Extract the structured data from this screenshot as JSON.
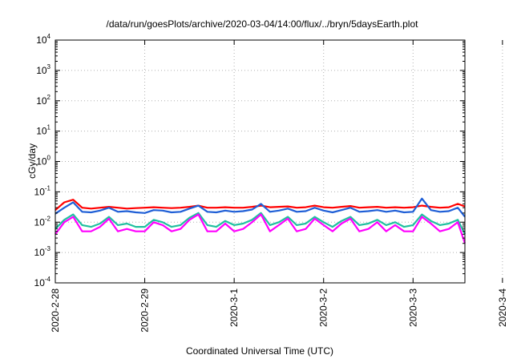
{
  "chart_data": {
    "type": "line",
    "title": "/data/run/goesPlots/archive/2020-03-04/14:00/flux/../bryn/5daysEarth.plot",
    "xlabel": "Coordinated Universal Time (UTC)",
    "ylabel": "cGy/day",
    "yscale": "log",
    "grid": true,
    "xlim": [
      "2020-02-28",
      "2020-03-04 14:00"
    ],
    "ylim": [
      0.0001,
      10000
    ],
    "x_ticks": [
      "2020-2-28",
      "2020-2-29",
      "2020-3-1",
      "2020-3-2",
      "2020-3-3",
      "2020-3-4"
    ],
    "y_ticks": [
      {
        "base": "10",
        "exp": "-4"
      },
      {
        "base": "10",
        "exp": "-3"
      },
      {
        "base": "10",
        "exp": "-2"
      },
      {
        "base": "10",
        "exp": "-1"
      },
      {
        "base": "10",
        "exp": "0"
      },
      {
        "base": "10",
        "exp": "1"
      },
      {
        "base": "10",
        "exp": "2"
      },
      {
        "base": "10",
        "exp": "3"
      },
      {
        "base": "10",
        "exp": "4"
      }
    ],
    "x_days": [
      0,
      0.1,
      0.2,
      0.3,
      0.4,
      0.5,
      0.6,
      0.7,
      0.8,
      0.9,
      1.0,
      1.1,
      1.2,
      1.3,
      1.4,
      1.5,
      1.6,
      1.7,
      1.8,
      1.9,
      2.0,
      2.1,
      2.2,
      2.3,
      2.4,
      2.5,
      2.6,
      2.7,
      2.8,
      2.9,
      3.0,
      3.1,
      3.2,
      3.3,
      3.4,
      3.5,
      3.6,
      3.7,
      3.8,
      3.9,
      4.0,
      4.1,
      4.2,
      4.3,
      4.4,
      4.5,
      4.58
    ],
    "series": [
      {
        "color": "#ff0000",
        "values": [
          0.025,
          0.045,
          0.055,
          0.03,
          0.028,
          0.03,
          0.032,
          0.03,
          0.028,
          0.029,
          0.03,
          0.031,
          0.03,
          0.029,
          0.03,
          0.032,
          0.035,
          0.03,
          0.03,
          0.031,
          0.03,
          0.03,
          0.032,
          0.035,
          0.031,
          0.032,
          0.033,
          0.03,
          0.031,
          0.035,
          0.031,
          0.03,
          0.032,
          0.034,
          0.03,
          0.031,
          0.032,
          0.03,
          0.031,
          0.03,
          0.031,
          0.035,
          0.032,
          0.03,
          0.031,
          0.04,
          0.033
        ]
      },
      {
        "color": "#1f5fd6",
        "values": [
          0.019,
          0.03,
          0.045,
          0.022,
          0.021,
          0.024,
          0.03,
          0.022,
          0.023,
          0.021,
          0.02,
          0.025,
          0.024,
          0.021,
          0.022,
          0.028,
          0.035,
          0.022,
          0.021,
          0.024,
          0.022,
          0.023,
          0.026,
          0.04,
          0.022,
          0.024,
          0.028,
          0.022,
          0.023,
          0.03,
          0.024,
          0.021,
          0.025,
          0.03,
          0.022,
          0.023,
          0.025,
          0.022,
          0.024,
          0.021,
          0.022,
          0.06,
          0.025,
          0.022,
          0.023,
          0.03,
          0.015
        ]
      },
      {
        "color": "#20c0a0",
        "values": [
          0.006,
          0.012,
          0.018,
          0.008,
          0.007,
          0.009,
          0.015,
          0.008,
          0.009,
          0.007,
          0.007,
          0.012,
          0.01,
          0.007,
          0.008,
          0.014,
          0.02,
          0.008,
          0.007,
          0.011,
          0.008,
          0.009,
          0.012,
          0.02,
          0.008,
          0.01,
          0.015,
          0.008,
          0.009,
          0.015,
          0.01,
          0.007,
          0.011,
          0.015,
          0.008,
          0.009,
          0.012,
          0.008,
          0.01,
          0.007,
          0.008,
          0.018,
          0.011,
          0.008,
          0.009,
          0.012,
          0.004
        ]
      },
      {
        "color": "#ff00ff",
        "values": [
          0.004,
          0.01,
          0.015,
          0.005,
          0.005,
          0.007,
          0.013,
          0.005,
          0.006,
          0.005,
          0.005,
          0.01,
          0.008,
          0.005,
          0.006,
          0.012,
          0.018,
          0.005,
          0.005,
          0.009,
          0.005,
          0.006,
          0.01,
          0.018,
          0.005,
          0.008,
          0.013,
          0.005,
          0.006,
          0.013,
          0.008,
          0.005,
          0.009,
          0.013,
          0.005,
          0.006,
          0.01,
          0.005,
          0.008,
          0.005,
          0.005,
          0.015,
          0.009,
          0.005,
          0.006,
          0.01,
          0.002
        ]
      }
    ]
  }
}
